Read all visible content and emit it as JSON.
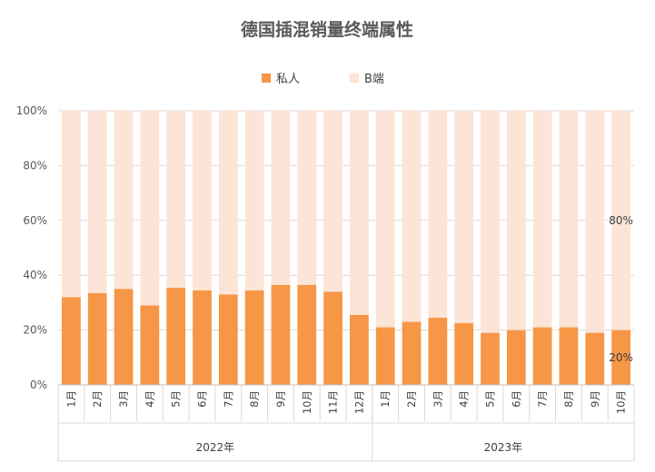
{
  "chart_data": {
    "type": "bar",
    "stacked": true,
    "title": "德国插混销量终端属性",
    "legend": {
      "position": "top",
      "entries": [
        "私人",
        "B端"
      ]
    },
    "colors": {
      "私人": "#f79646",
      "B端": "#fce4d6"
    },
    "ylim": [
      0,
      100
    ],
    "yticks": [
      "0%",
      "20%",
      "40%",
      "60%",
      "80%",
      "100%"
    ],
    "categories": [
      "1月",
      "2月",
      "3月",
      "4月",
      "5月",
      "6月",
      "7月",
      "8月",
      "9月",
      "10月",
      "11月",
      "12月",
      "1月",
      "2月",
      "3月",
      "4月",
      "5月",
      "6月",
      "7月",
      "8月",
      "9月",
      "10月"
    ],
    "groups": [
      {
        "label": "2022年",
        "count": 12
      },
      {
        "label": "2023年",
        "count": 10
      }
    ],
    "series": [
      {
        "name": "私人",
        "values": [
          32,
          33.5,
          35,
          29,
          35.5,
          34.5,
          33,
          34.5,
          36.5,
          36.5,
          34,
          25.5,
          21,
          23,
          24.5,
          22.5,
          19,
          20,
          21,
          21,
          19,
          20
        ]
      },
      {
        "name": "B端",
        "values": [
          68,
          66.5,
          65,
          71,
          64.5,
          65.5,
          67,
          65.5,
          63.5,
          63.5,
          66,
          74.5,
          79,
          77,
          75.5,
          77.5,
          81,
          80,
          79,
          79,
          81,
          80
        ]
      }
    ],
    "data_labels": [
      {
        "series": "私人",
        "index": 21,
        "text": "20%"
      },
      {
        "series": "B端",
        "index": 21,
        "text": "80%"
      }
    ],
    "grid": true
  }
}
